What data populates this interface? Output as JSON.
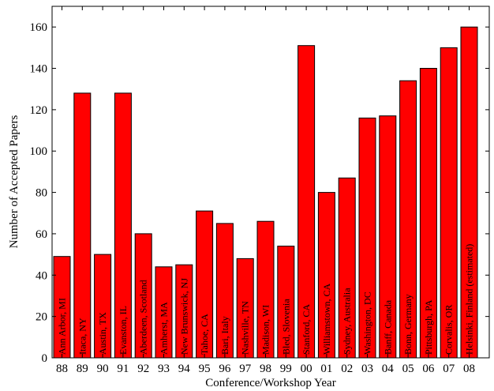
{
  "chart_data": {
    "type": "bar",
    "title": "",
    "xlabel": "Conference/Workshop Year",
    "ylabel": "Number of Accepted Papers",
    "ylim": [
      0,
      170
    ],
    "yticks": [
      0,
      20,
      40,
      60,
      80,
      100,
      120,
      140,
      160
    ],
    "grid": false,
    "bar_color": "#ff0000",
    "categories": [
      "88",
      "89",
      "90",
      "91",
      "92",
      "93",
      "94",
      "95",
      "96",
      "97",
      "98",
      "99",
      "00",
      "01",
      "02",
      "03",
      "04",
      "05",
      "06",
      "07",
      "08"
    ],
    "values": [
      49,
      128,
      50,
      128,
      60,
      44,
      45,
      71,
      65,
      48,
      66,
      54,
      151,
      80,
      87,
      116,
      117,
      134,
      140,
      150,
      160
    ],
    "bar_labels": [
      "Ann Arbor, MI",
      "Itaca, NY",
      "Austin, TX",
      "Evanston, IL",
      "Aberdeen, Scotland",
      "Amherst, MA",
      "New Brunswick, NJ",
      "Tahoe, CA",
      "Bari, Italy",
      "Nashville, TN",
      "Madison, WI",
      "Bled, Slovenia",
      "Stanford, CA",
      "Williamstown, CA",
      "Sydney, Australia",
      "Washington, DC",
      "Banff, Canada",
      "Bonn, Germany",
      "Pittsburgh, PA",
      "Corvalis, OR",
      "Helsinki, Finland (estimated)"
    ]
  }
}
